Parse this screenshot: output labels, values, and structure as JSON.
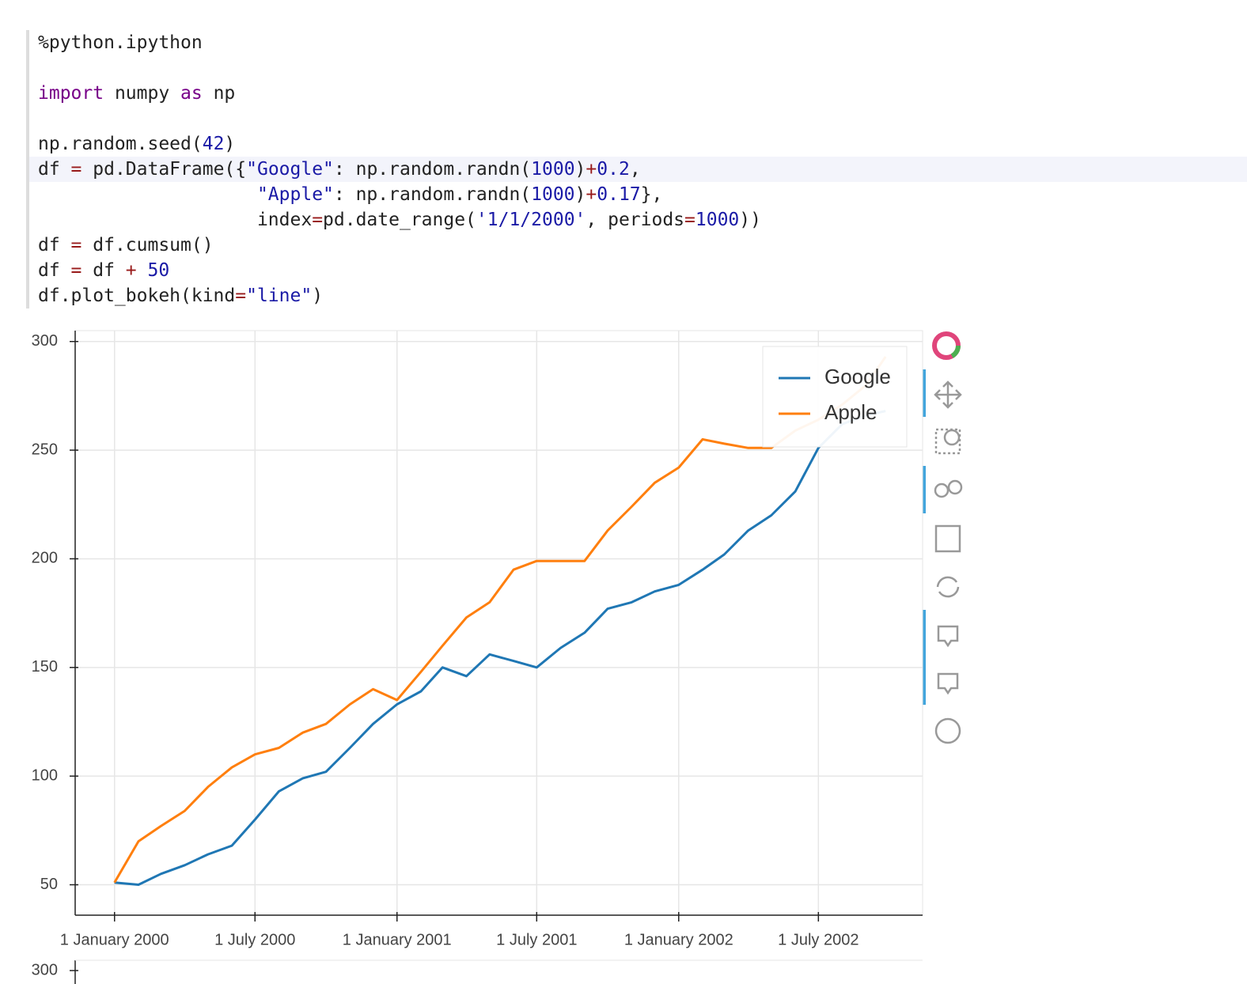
{
  "code": {
    "lines": [
      [
        {
          "t": "%python.ipython"
        }
      ],
      [],
      [
        {
          "t": "import",
          "c": "#770088"
        },
        {
          "t": " numpy "
        },
        {
          "t": "as",
          "c": "#770088"
        },
        {
          "t": " np"
        }
      ],
      [],
      [
        {
          "t": "np.random.seed("
        },
        {
          "t": "42",
          "c": "#1a1aa6"
        },
        {
          "t": ")"
        }
      ],
      [
        {
          "t": "df "
        },
        {
          "t": "=",
          "c": "#981a1a"
        },
        {
          "t": " pd.DataFrame({"
        },
        {
          "t": "\"Google\"",
          "c": "#1a1aa6"
        },
        {
          "t": ": np.random.randn("
        },
        {
          "t": "1000",
          "c": "#1a1aa6"
        },
        {
          "t": ")"
        },
        {
          "t": "+",
          "c": "#981a1a"
        },
        {
          "t": "0.2",
          "c": "#1a1aa6"
        },
        {
          "t": ","
        }
      ],
      [
        {
          "t": "                    "
        },
        {
          "t": "\"Apple\"",
          "c": "#1a1aa6"
        },
        {
          "t": ": np.random.randn("
        },
        {
          "t": "1000",
          "c": "#1a1aa6"
        },
        {
          "t": ")"
        },
        {
          "t": "+",
          "c": "#981a1a"
        },
        {
          "t": "0.17",
          "c": "#1a1aa6"
        },
        {
          "t": "},"
        }
      ],
      [
        {
          "t": "                    index"
        },
        {
          "t": "=",
          "c": "#981a1a"
        },
        {
          "t": "pd.date_range("
        },
        {
          "t": "'1/1/2000'",
          "c": "#1a1aa6"
        },
        {
          "t": ", periods"
        },
        {
          "t": "=",
          "c": "#981a1a"
        },
        {
          "t": "1000",
          "c": "#1a1aa6"
        },
        {
          "t": "))"
        }
      ],
      [
        {
          "t": "df "
        },
        {
          "t": "=",
          "c": "#981a1a"
        },
        {
          "t": " df.cumsum()"
        }
      ],
      [
        {
          "t": "df "
        },
        {
          "t": "=",
          "c": "#981a1a"
        },
        {
          "t": " df "
        },
        {
          "t": "+",
          "c": "#981a1a"
        },
        {
          "t": " "
        },
        {
          "t": "50",
          "c": "#1a1aa6"
        }
      ],
      [
        {
          "t": "df.plot_bokeh(kind"
        },
        {
          "t": "=",
          "c": "#981a1a"
        },
        {
          "t": "\"line\"",
          "c": "#1a1aa6"
        },
        {
          "t": ")"
        }
      ]
    ]
  },
  "chart_data": {
    "type": "line",
    "x": [
      "2000-01-01",
      "2000-02-01",
      "2000-03-01",
      "2000-04-01",
      "2000-05-01",
      "2000-06-01",
      "2000-07-01",
      "2000-08-01",
      "2000-09-01",
      "2000-10-01",
      "2000-11-01",
      "2000-12-01",
      "2001-01-01",
      "2001-02-01",
      "2001-03-01",
      "2001-04-01",
      "2001-05-01",
      "2001-06-01",
      "2001-07-01",
      "2001-08-01",
      "2001-09-01",
      "2001-10-01",
      "2001-11-01",
      "2001-12-01",
      "2002-01-01",
      "2002-02-01",
      "2002-03-01",
      "2002-04-01",
      "2002-05-01",
      "2002-06-01",
      "2002-07-01",
      "2002-08-01",
      "2002-09-01",
      "2002-09-26"
    ],
    "series": [
      {
        "name": "Google",
        "color": "#1f77b4",
        "values": [
          51,
          50,
          55,
          59,
          64,
          68,
          80,
          93,
          99,
          102,
          113,
          124,
          133,
          139,
          150,
          146,
          156,
          153,
          150,
          159,
          166,
          177,
          180,
          185,
          188,
          195,
          202,
          213,
          220,
          231,
          251,
          262,
          266,
          268
        ]
      },
      {
        "name": "Apple",
        "color": "#ff7f0e",
        "values": [
          51,
          70,
          77,
          84,
          95,
          104,
          110,
          113,
          120,
          124,
          133,
          140,
          135,
          148,
          160,
          173,
          180,
          195,
          199,
          199,
          199,
          213,
          224,
          235,
          242,
          255,
          253,
          251,
          251,
          259,
          264,
          271,
          280,
          293
        ]
      }
    ],
    "xlim": [
      "1999-11-11",
      "2002-11-13"
    ],
    "xticks": [
      {
        "value": "2000-01-01",
        "label": "1 January 2000"
      },
      {
        "value": "2000-07-01",
        "label": "1 July 2000"
      },
      {
        "value": "2001-01-01",
        "label": "1 January 2001"
      },
      {
        "value": "2001-07-01",
        "label": "1 July 2001"
      },
      {
        "value": "2002-01-01",
        "label": "1 January 2002"
      },
      {
        "value": "2002-07-01",
        "label": "1 July 2002"
      }
    ],
    "ylim": [
      36,
      305
    ],
    "yticks": [
      50,
      100,
      150,
      200,
      250,
      300
    ],
    "grid": true,
    "legend": "top-right"
  },
  "next_plot": {
    "yticks": [
      300
    ]
  }
}
